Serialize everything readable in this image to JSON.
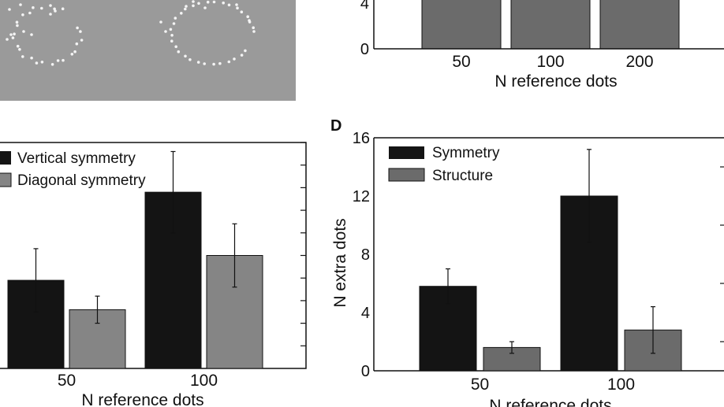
{
  "panel_labels": {
    "d": "D"
  },
  "colors": {
    "dark": "#141414",
    "gray": "#858585",
    "mid_gray": "#6b6b6b",
    "stim_bg": "#9a9a9a",
    "dot": "#f4f4f4"
  },
  "chart_data": [
    {
      "id": "top-right",
      "type": "bar",
      "categories": [
        "50",
        "100",
        "200"
      ],
      "series": [
        {
          "values": [
            null,
            null,
            null
          ]
        }
      ],
      "ylim": [
        0,
        8
      ],
      "yticks": [
        "0",
        "4"
      ],
      "xlabel": "N reference dots",
      "ylabel": "",
      "note": ""
    },
    {
      "id": "bottom-left",
      "type": "bar",
      "categories": [
        "50",
        "100"
      ],
      "series": [
        {
          "name": "Vertical symmetry",
          "values": [
            3.9,
            7.8
          ],
          "errors": [
            1.4,
            1.8
          ]
        },
        {
          "name": "Diagonal symmetry",
          "values": [
            2.6,
            5.0
          ],
          "errors": [
            0.6,
            1.4
          ]
        }
      ],
      "ylim": [
        0,
        10
      ],
      "xlabel": "N reference dots",
      "ylabel": "",
      "legend": "top-left"
    },
    {
      "id": "D",
      "type": "bar",
      "categories": [
        "50",
        "100"
      ],
      "series": [
        {
          "name": "Symmetry",
          "values": [
            5.8,
            12.0
          ],
          "errors": [
            1.2,
            3.2
          ]
        },
        {
          "name": "Structure",
          "values": [
            1.6,
            2.8
          ],
          "errors": [
            0.4,
            1.6
          ]
        }
      ],
      "ylim": [
        0,
        16
      ],
      "yticks": [
        "0",
        "4",
        "8",
        "12",
        "16"
      ],
      "xlabel": "N reference dots",
      "ylabel": "N extra dots",
      "legend": "top-left"
    }
  ]
}
